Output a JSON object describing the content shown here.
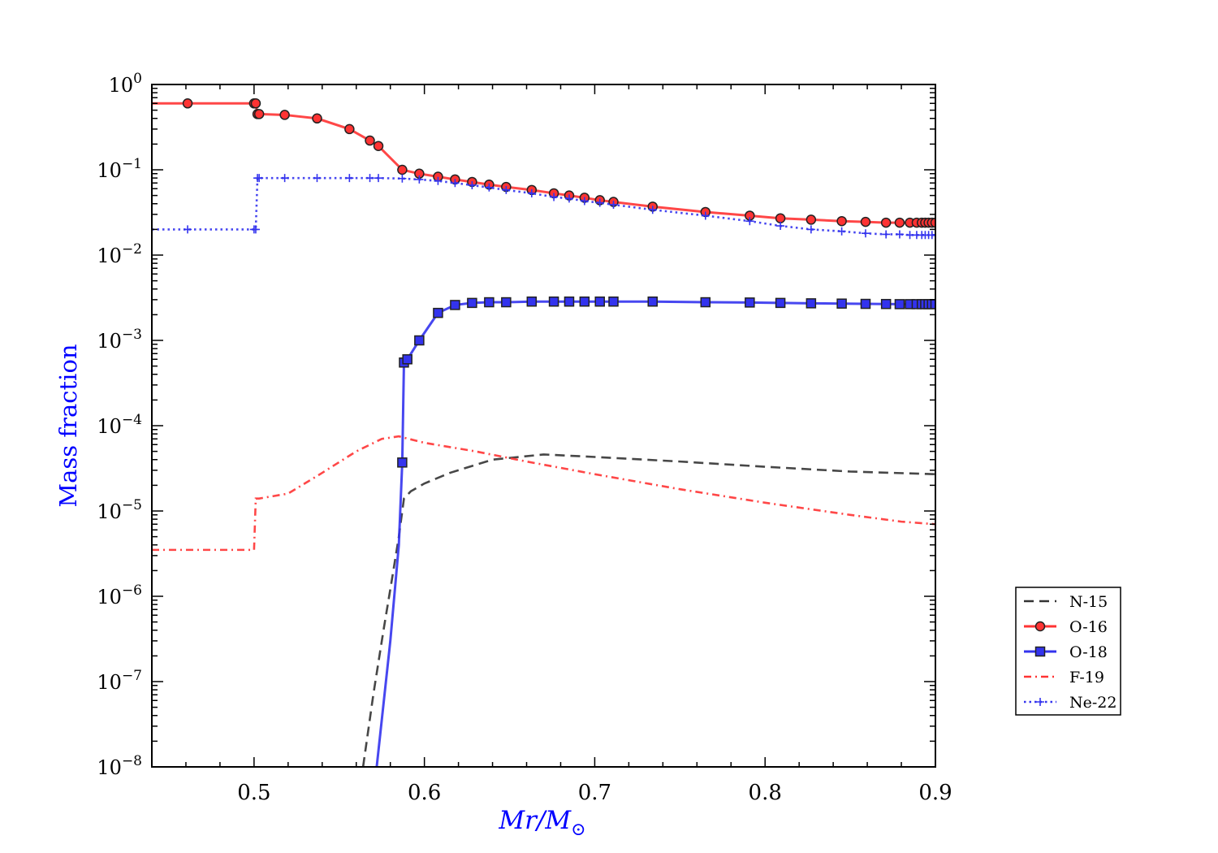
{
  "chart_data": {
    "type": "line",
    "title": "",
    "xlabel": "Mr/M",
    "xlabel_sub": "⊙",
    "ylabel": "Mass fraction",
    "xlim": [
      0.44,
      0.9
    ],
    "ylim": [
      1e-08,
      1
    ],
    "yscale": "log",
    "x_ticks": [
      0.5,
      0.6,
      0.7,
      0.8,
      0.9
    ],
    "x_tick_labels": [
      "0.5",
      "0.6",
      "0.7",
      "0.8",
      "0.9"
    ],
    "y_tick_exponents": [
      -8,
      -7,
      -6,
      -5,
      -4,
      -3,
      -2,
      -1,
      0
    ],
    "y_tick_base": "10",
    "grid": false,
    "legend_position": "right, outside plot",
    "label_color": "#0000ff",
    "series": [
      {
        "name": "N-15",
        "color": "#333333",
        "linestyle": "dashed",
        "marker": "none",
        "x": [
          0.564,
          0.57,
          0.576,
          0.581,
          0.585,
          0.588,
          0.592,
          0.6,
          0.615,
          0.64,
          0.67,
          0.7,
          0.75,
          0.8,
          0.85,
          0.9
        ],
        "y": [
          1e-08,
          7e-08,
          4e-07,
          1.6e-06,
          5e-06,
          1.4e-05,
          1.7e-05,
          2.1e-05,
          2.8e-05,
          4e-05,
          4.6e-05,
          4.3e-05,
          3.8e-05,
          3.3e-05,
          2.9e-05,
          2.7e-05
        ]
      },
      {
        "name": "O-16",
        "color": "#ff3333",
        "linestyle": "solid",
        "marker": "circle",
        "x": [
          0.44,
          0.461,
          0.5,
          0.501,
          0.502,
          0.503,
          0.518,
          0.537,
          0.556,
          0.568,
          0.573,
          0.587,
          0.597,
          0.608,
          0.618,
          0.628,
          0.638,
          0.648,
          0.663,
          0.676,
          0.685,
          0.694,
          0.703,
          0.711,
          0.734,
          0.765,
          0.791,
          0.809,
          0.827,
          0.845,
          0.859,
          0.871,
          0.879,
          0.885,
          0.889,
          0.892,
          0.894,
          0.896,
          0.898,
          0.9
        ],
        "y": [
          0.6,
          0.6,
          0.6,
          0.6,
          0.45,
          0.45,
          0.44,
          0.4,
          0.3,
          0.22,
          0.19,
          0.1,
          0.09,
          0.083,
          0.077,
          0.072,
          0.067,
          0.063,
          0.058,
          0.053,
          0.05,
          0.047,
          0.044,
          0.042,
          0.037,
          0.032,
          0.029,
          0.027,
          0.026,
          0.025,
          0.0245,
          0.024,
          0.024,
          0.024,
          0.024,
          0.024,
          0.024,
          0.024,
          0.024,
          0.024
        ],
        "markers_from_index": 1
      },
      {
        "name": "O-18",
        "color": "#3333ee",
        "linestyle": "solid",
        "marker": "square",
        "x": [
          0.572,
          0.58,
          0.585,
          0.587,
          0.588,
          0.59,
          0.597,
          0.608,
          0.618,
          0.628,
          0.638,
          0.648,
          0.663,
          0.676,
          0.685,
          0.694,
          0.703,
          0.711,
          0.734,
          0.765,
          0.791,
          0.809,
          0.827,
          0.845,
          0.859,
          0.871,
          0.879,
          0.885,
          0.889,
          0.892,
          0.894,
          0.896,
          0.898,
          0.9
        ],
        "y": [
          1e-08,
          3e-07,
          4e-06,
          3.7e-05,
          0.00055,
          0.0006,
          0.001,
          0.0021,
          0.0026,
          0.00275,
          0.0028,
          0.0028,
          0.00285,
          0.00285,
          0.00285,
          0.00285,
          0.00285,
          0.00285,
          0.00285,
          0.0028,
          0.00278,
          0.00275,
          0.00272,
          0.0027,
          0.00268,
          0.00267,
          0.00266,
          0.00266,
          0.00266,
          0.00266,
          0.00266,
          0.00266,
          0.00266,
          0.00266
        ],
        "markers_from_index": 3
      },
      {
        "name": "F-19",
        "color": "#ff3333",
        "linestyle": "dashdot",
        "marker": "none",
        "x": [
          0.44,
          0.5,
          0.501,
          0.503,
          0.52,
          0.54,
          0.56,
          0.575,
          0.585,
          0.6,
          0.63,
          0.66,
          0.7,
          0.75,
          0.8,
          0.85,
          0.88,
          0.9
        ],
        "y": [
          3.5e-06,
          3.5e-06,
          1.4e-05,
          1.4e-05,
          1.6e-05,
          2.8e-05,
          5e-05,
          7e-05,
          7.5e-05,
          6.3e-05,
          5e-05,
          3.8e-05,
          2.7e-05,
          1.8e-05,
          1.25e-05,
          9e-06,
          7.5e-06,
          7e-06
        ]
      },
      {
        "name": "Ne-22",
        "color": "#3333ee",
        "linestyle": "dotted",
        "marker": "plus",
        "x": [
          0.44,
          0.461,
          0.5,
          0.501,
          0.502,
          0.503,
          0.518,
          0.537,
          0.556,
          0.568,
          0.573,
          0.587,
          0.597,
          0.608,
          0.618,
          0.628,
          0.638,
          0.648,
          0.663,
          0.676,
          0.685,
          0.694,
          0.703,
          0.711,
          0.734,
          0.765,
          0.791,
          0.809,
          0.827,
          0.845,
          0.859,
          0.871,
          0.879,
          0.885,
          0.889,
          0.892,
          0.894,
          0.896,
          0.898,
          0.9
        ],
        "y": [
          0.02,
          0.02,
          0.02,
          0.02,
          0.08,
          0.08,
          0.08,
          0.08,
          0.08,
          0.08,
          0.08,
          0.079,
          0.077,
          0.074,
          0.07,
          0.066,
          0.062,
          0.058,
          0.053,
          0.048,
          0.046,
          0.043,
          0.041,
          0.039,
          0.034,
          0.029,
          0.025,
          0.022,
          0.02,
          0.019,
          0.018,
          0.0175,
          0.0175,
          0.0172,
          0.0172,
          0.0172,
          0.0172,
          0.0172,
          0.0172,
          0.0172
        ],
        "markers_from_index": 1
      }
    ]
  }
}
